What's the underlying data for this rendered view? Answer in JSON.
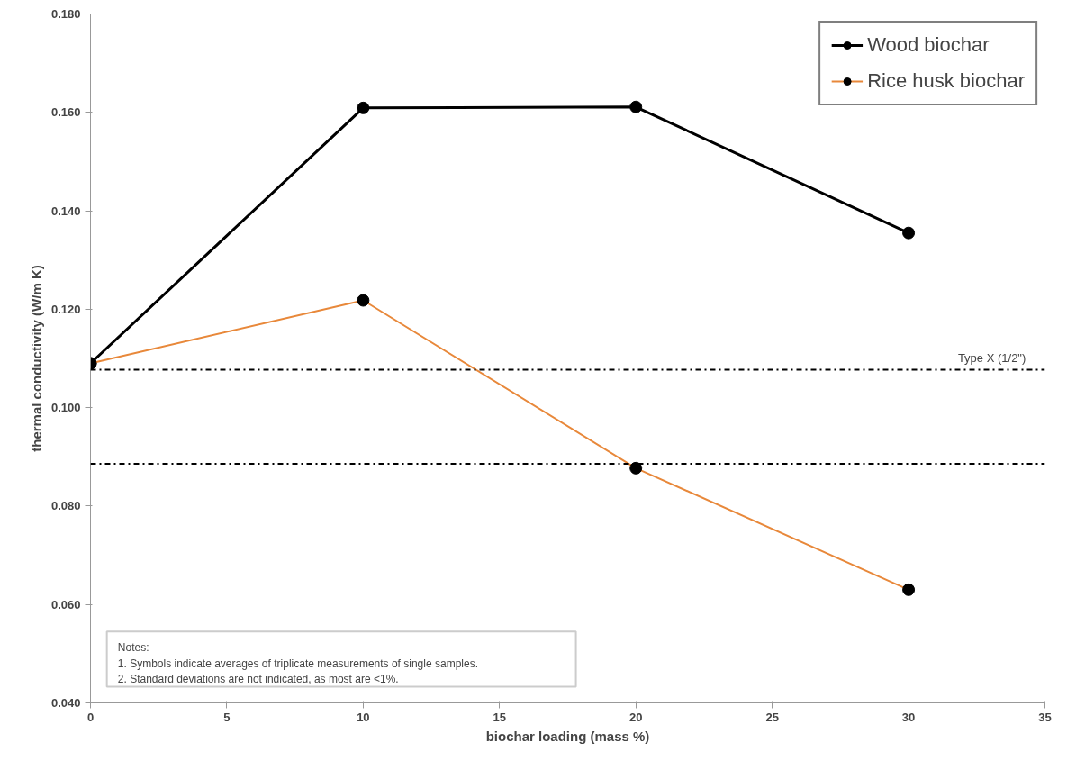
{
  "chart_data": {
    "type": "line",
    "xlabel": "biochar loading (mass %)",
    "ylabel": "thermal conductivity (W/m K)",
    "x": [
      0,
      10,
      20,
      30
    ],
    "series": [
      {
        "name": "Wood biochar",
        "color": "#000000",
        "values": [
          0.109,
          0.1609,
          0.1611,
          0.1355
        ]
      },
      {
        "name": "Rice husk biochar",
        "color": "#e8883a",
        "values": [
          0.109,
          0.1218,
          0.0877,
          0.063
        ]
      }
    ],
    "xlim": [
      0,
      35
    ],
    "xticks": [
      0,
      5,
      10,
      15,
      20,
      25,
      30,
      35
    ],
    "ylim": [
      0.04,
      0.18
    ],
    "yticks": [
      {
        "value": 0.04,
        "label": "0.040"
      },
      {
        "value": 0.06,
        "label": "0.060"
      },
      {
        "value": 0.08,
        "label": "0.080"
      },
      {
        "value": 0.1,
        "label": "0.100"
      },
      {
        "value": 0.12,
        "label": "0.120"
      },
      {
        "value": 0.14,
        "label": "0.140"
      },
      {
        "value": 0.16,
        "label": "0.160"
      },
      {
        "value": 0.18,
        "label": "0.180"
      }
    ],
    "ref_lines": [
      {
        "axis": "y",
        "value": 0.1077,
        "label": "Type X (1/2\")",
        "color": "#000000",
        "line_style": "dashdot"
      },
      {
        "axis": "y",
        "value": 0.0886,
        "label": null,
        "color": "#000000",
        "line_style": "dashdot"
      }
    ],
    "annotations": [
      "Notes:",
      "1. Symbols indicate averages of triplicate measurements of single samples.",
      "2. Standard deviations are not indicated, as most are <1%."
    ],
    "marker": "circle",
    "grid": false,
    "legend": "top right"
  }
}
